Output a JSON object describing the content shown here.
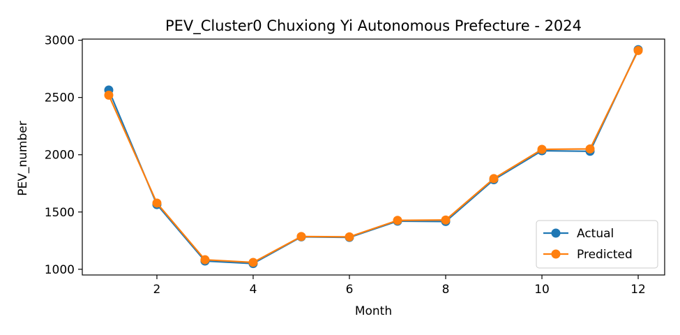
{
  "chart_data": {
    "type": "line",
    "title": "PEV_Cluster0 Chuxiong Yi Autonomous Prefecture - 2024",
    "xlabel": "Month",
    "ylabel": "PEV_number",
    "x": [
      1,
      2,
      3,
      4,
      5,
      6,
      7,
      8,
      9,
      10,
      11,
      12
    ],
    "xlim": [
      0.45,
      12.55
    ],
    "ylim": [
      950,
      3010
    ],
    "xticks": [
      2,
      4,
      6,
      8,
      10,
      12
    ],
    "yticks": [
      1000,
      1500,
      2000,
      2500,
      3000
    ],
    "grid": false,
    "legend_position": "lower-right",
    "series": [
      {
        "name": "Actual",
        "color": "#1f77b4",
        "marker": "circle",
        "values": [
          2565,
          1565,
          1072,
          1050,
          1283,
          1278,
          1420,
          1417,
          1782,
          2035,
          2030,
          2918
        ]
      },
      {
        "name": "Predicted",
        "color": "#ff7f0e",
        "marker": "circle",
        "values": [
          2520,
          1578,
          1083,
          1060,
          1286,
          1283,
          1427,
          1430,
          1792,
          2047,
          2051,
          2910
        ]
      }
    ]
  }
}
